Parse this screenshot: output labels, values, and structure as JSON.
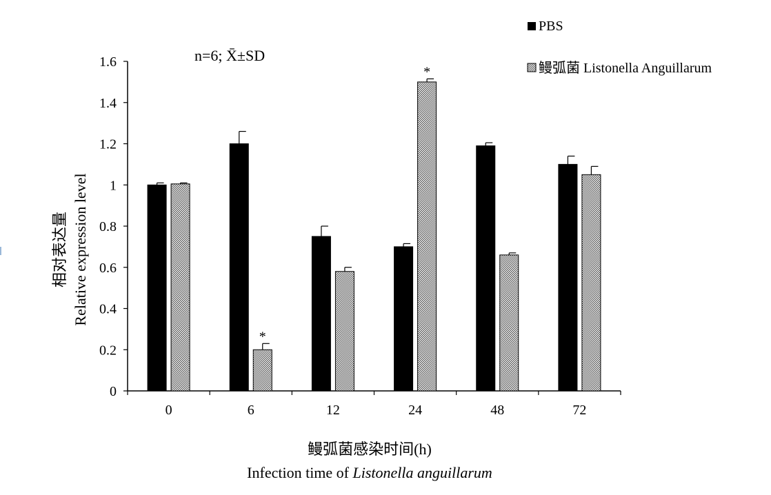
{
  "chart_data": {
    "type": "bar",
    "annotation": "n=6;  X̄±SD",
    "categories": [
      "0",
      "6",
      "12",
      "24",
      "48",
      "72"
    ],
    "series": [
      {
        "name": "PBS",
        "values": [
          1.0,
          1.2,
          0.75,
          0.7,
          1.19,
          1.1
        ],
        "errors": [
          0.01,
          0.06,
          0.05,
          0.015,
          0.015,
          0.04
        ],
        "significant": [
          false,
          false,
          false,
          false,
          false,
          false
        ],
        "color": "#000000"
      },
      {
        "name": "鳗弧菌 Listonella Anguillarum",
        "values": [
          1.005,
          0.2,
          0.58,
          1.5,
          0.66,
          1.05
        ],
        "errors": [
          0.005,
          0.03,
          0.02,
          0.015,
          0.01,
          0.04
        ],
        "significant": [
          false,
          true,
          false,
          true,
          false,
          false
        ],
        "color": "#c8c8c8"
      }
    ],
    "significance_marker": "*",
    "ylabel_cn": "相对表达量",
    "ylabel": "Relative expression level",
    "xlabel_cn": "鳗弧菌感染时间(h)",
    "xlabel_prefix": "Infection time of ",
    "xlabel_italic": "Listonella anguillarum",
    "ylim": [
      0,
      1.6
    ],
    "yticks": [
      "0",
      "0.2",
      "0.4",
      "0.6",
      "0.8",
      "1",
      "1.2",
      "1.4",
      "1.6"
    ],
    "grid": false,
    "legend_position": "top-right"
  }
}
